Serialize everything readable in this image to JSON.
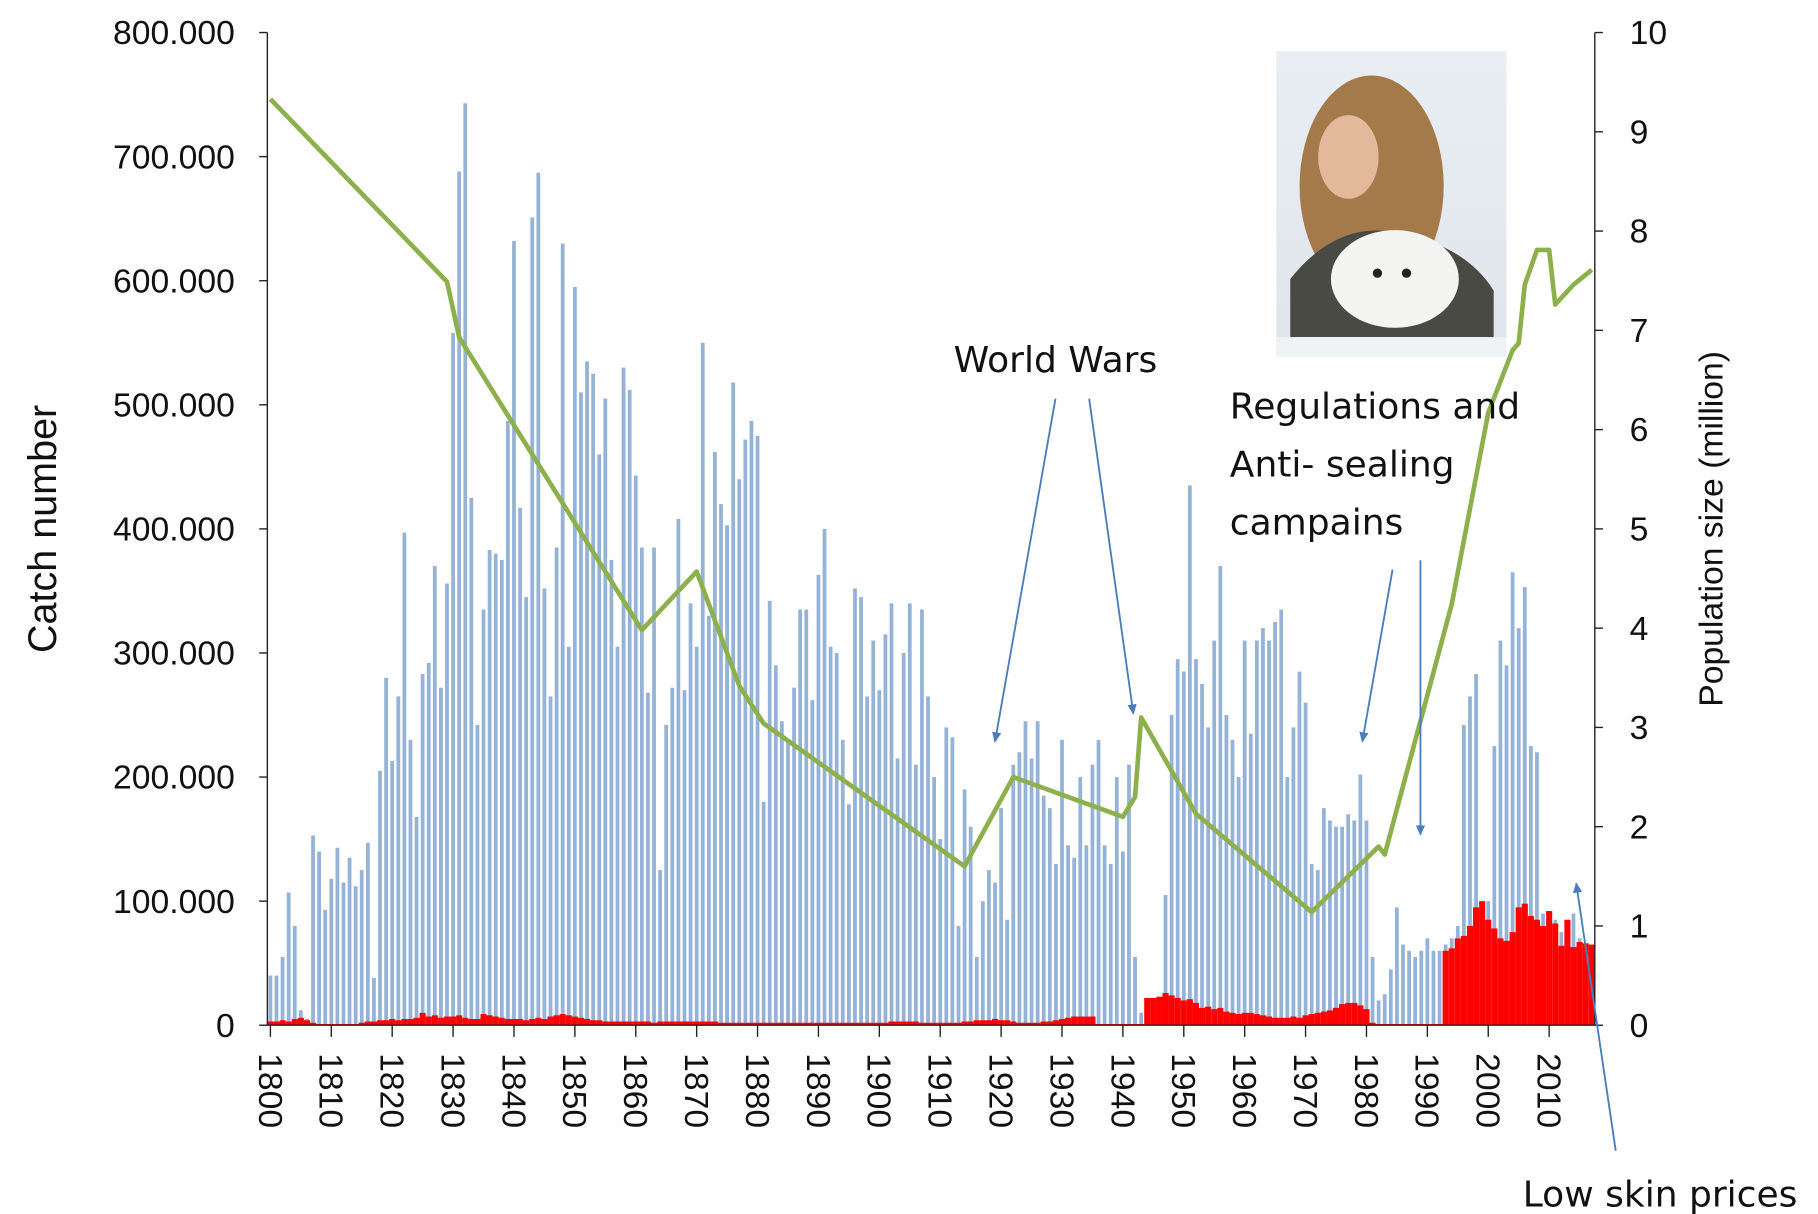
{
  "chart_data": {
    "type": "bar",
    "y_label": "Catch number",
    "y2_label": "Population size (million)",
    "x": [
      1800,
      1801,
      1802,
      1803,
      1804,
      1805,
      1806,
      1807,
      1808,
      1809,
      1810,
      1811,
      1812,
      1813,
      1814,
      1815,
      1816,
      1817,
      1818,
      1819,
      1820,
      1821,
      1822,
      1823,
      1824,
      1825,
      1826,
      1827,
      1828,
      1829,
      1830,
      1831,
      1832,
      1833,
      1834,
      1835,
      1836,
      1837,
      1838,
      1839,
      1840,
      1841,
      1842,
      1843,
      1844,
      1845,
      1846,
      1847,
      1848,
      1849,
      1850,
      1851,
      1852,
      1853,
      1854,
      1855,
      1856,
      1857,
      1858,
      1859,
      1860,
      1861,
      1862,
      1863,
      1864,
      1865,
      1866,
      1867,
      1868,
      1869,
      1870,
      1871,
      1872,
      1873,
      1874,
      1875,
      1876,
      1877,
      1878,
      1879,
      1880,
      1881,
      1882,
      1883,
      1884,
      1885,
      1886,
      1887,
      1888,
      1889,
      1890,
      1891,
      1892,
      1893,
      1894,
      1895,
      1896,
      1897,
      1898,
      1899,
      1900,
      1901,
      1902,
      1903,
      1904,
      1905,
      1906,
      1907,
      1908,
      1909,
      1910,
      1911,
      1912,
      1913,
      1914,
      1915,
      1916,
      1917,
      1918,
      1919,
      1920,
      1921,
      1922,
      1923,
      1924,
      1925,
      1926,
      1927,
      1928,
      1929,
      1930,
      1931,
      1932,
      1933,
      1934,
      1935,
      1936,
      1937,
      1938,
      1939,
      1940,
      1941,
      1942,
      1943,
      1944,
      1945,
      1946,
      1947,
      1948,
      1949,
      1950,
      1951,
      1952,
      1953,
      1954,
      1955,
      1956,
      1957,
      1958,
      1959,
      1960,
      1961,
      1962,
      1963,
      1964,
      1965,
      1966,
      1967,
      1968,
      1969,
      1970,
      1971,
      1972,
      1973,
      1974,
      1975,
      1976,
      1977,
      1978,
      1979,
      1980,
      1981,
      1982,
      1983,
      1984,
      1985,
      1986,
      1987,
      1988,
      1989,
      1990,
      1991,
      1992,
      1993,
      1994,
      1995,
      1996,
      1997,
      1998,
      1999,
      2000,
      2001,
      2002,
      2003,
      2004,
      2005,
      2006,
      2007,
      2008,
      2009,
      2010,
      2011,
      2012,
      2013,
      2014,
      2015,
      2016,
      2017
    ],
    "series": [
      {
        "color": "#95b3d7",
        "values": [
          40000,
          40000,
          55000,
          107000,
          80000,
          12000,
          5000,
          153000,
          140000,
          93000,
          118000,
          143000,
          115000,
          135000,
          112000,
          125000,
          147000,
          38000,
          205000,
          280000,
          213000,
          265000,
          397000,
          230000,
          168000,
          283000,
          292000,
          370000,
          272000,
          356000,
          558000,
          688000,
          743000,
          425000,
          242000,
          335000,
          383000,
          380000,
          375000,
          487000,
          632000,
          417000,
          345000,
          651000,
          687000,
          352000,
          265000,
          385000,
          630000,
          305000,
          595000,
          510000,
          535000,
          525000,
          460000,
          505000,
          375000,
          305000,
          530000,
          512000,
          443000,
          385000,
          268000,
          385000,
          125000,
          242000,
          272000,
          408000,
          270000,
          340000,
          305000,
          550000,
          330000,
          462000,
          420000,
          403000,
          518000,
          440000,
          472000,
          487000,
          475000,
          180000,
          342000,
          290000,
          245000,
          230000,
          272000,
          335000,
          335000,
          262000,
          363000,
          400000,
          305000,
          300000,
          230000,
          178000,
          352000,
          345000,
          265000,
          310000,
          270000,
          315000,
          340000,
          215000,
          300000,
          340000,
          210000,
          335000,
          265000,
          200000,
          150000,
          240000,
          232000,
          80000,
          190000,
          160000,
          55000,
          100000,
          125000,
          115000,
          175000,
          85000,
          210000,
          220000,
          245000,
          215000,
          245000,
          185000,
          175000,
          130000,
          230000,
          145000,
          135000,
          200000,
          145000,
          210000,
          230000,
          145000,
          130000,
          200000,
          140000,
          210000,
          55000,
          10000,
          5000,
          5000,
          10000,
          105000,
          250000,
          295000,
          285000,
          435000,
          295000,
          275000,
          240000,
          310000,
          370000,
          250000,
          230000,
          200000,
          310000,
          235000,
          310000,
          320000,
          310000,
          325000,
          335000,
          200000,
          240000,
          285000,
          260000,
          130000,
          125000,
          175000,
          165000,
          160000,
          160000,
          170000,
          165000,
          202000,
          165000,
          55000,
          20000,
          25000,
          45000,
          95000,
          65000,
          60000,
          55000,
          60000,
          70000,
          60000,
          60000,
          65000,
          70000,
          80000,
          242000,
          265000,
          283000,
          90000,
          100000,
          225000,
          310000,
          290000,
          365000,
          320000,
          353000,
          225000,
          220000,
          90000,
          80000,
          85000,
          75000,
          70000,
          90000,
          70000,
          65000,
          65000
        ]
      },
      {
        "color": "#ff0000",
        "values": [
          3000,
          3000,
          4000,
          3000,
          5000,
          6000,
          4000,
          2000,
          1000,
          1000,
          1000,
          1000,
          1000,
          1000,
          1000,
          2000,
          3000,
          3000,
          4000,
          4000,
          5000,
          4000,
          5000,
          5000,
          6000,
          10000,
          7000,
          8000,
          6000,
          7000,
          7000,
          8000,
          6000,
          5000,
          5000,
          9000,
          8000,
          7000,
          6000,
          5000,
          5000,
          5000,
          4000,
          5000,
          6000,
          5000,
          7000,
          8000,
          9000,
          8000,
          7000,
          6000,
          5000,
          4000,
          4000,
          3000,
          3000,
          3000,
          3000,
          3000,
          3000,
          3000,
          3000,
          2000,
          3000,
          3000,
          3000,
          3000,
          3000,
          3000,
          3000,
          3000,
          3000,
          3000,
          2000,
          2000,
          2000,
          2000,
          2000,
          2000,
          2000,
          2000,
          2000,
          2000,
          2000,
          2000,
          2000,
          2000,
          2000,
          2000,
          2000,
          2000,
          2000,
          2000,
          2000,
          2000,
          2000,
          2000,
          2000,
          2000,
          2000,
          2000,
          3000,
          3000,
          3000,
          3000,
          3000,
          2000,
          2000,
          2000,
          2000,
          2000,
          2000,
          2000,
          3000,
          3000,
          4000,
          4000,
          4000,
          5000,
          4000,
          4000,
          3000,
          2000,
          2000,
          2000,
          2000,
          3000,
          3000,
          4000,
          5000,
          6000,
          7000,
          7000,
          7000,
          7000,
          1000,
          1000,
          1000,
          1000,
          1000,
          1000,
          1000,
          1000,
          22000,
          22000,
          23000,
          26000,
          24000,
          22000,
          20000,
          21000,
          18000,
          14000,
          15000,
          13000,
          14000,
          11000,
          10000,
          9000,
          10000,
          10000,
          9000,
          8000,
          7000,
          6000,
          6000,
          6000,
          7000,
          6000,
          8000,
          9000,
          10000,
          11000,
          12000,
          14000,
          17000,
          18000,
          18000,
          16000,
          13000,
          2000,
          1000,
          1000,
          1000,
          1000,
          1000,
          1000,
          1000,
          1000,
          1000,
          1000,
          1000,
          60000,
          62000,
          70000,
          72000,
          80000,
          95000,
          100000,
          85000,
          78000,
          70000,
          68000,
          75000,
          95000,
          98000,
          88000,
          85000,
          80000,
          92000,
          82000,
          64000,
          85000,
          63000,
          67000,
          66000,
          65000
        ]
      },
      {
        "type": "line",
        "axis": "y2",
        "color": "#8db04c",
        "x": [
          1800,
          1829,
          1831,
          1861,
          1870,
          1877,
          1881,
          1914,
          1922,
          1940,
          1942,
          1943,
          1952,
          1971,
          1982,
          1983,
          1994,
          2000,
          2004,
          2005,
          2006,
          2008,
          2010,
          2011,
          2014,
          2017
        ],
        "values": [
          9.33,
          7.49,
          6.93,
          3.98,
          4.57,
          3.42,
          3.04,
          1.6,
          2.5,
          2.1,
          2.3,
          3.1,
          2.13,
          1.14,
          1.8,
          1.72,
          4.24,
          6.17,
          6.8,
          6.87,
          7.46,
          7.81,
          7.81,
          7.26,
          7.46,
          7.61
        ]
      }
    ],
    "xlim": [
      1799.5,
      2017.5
    ],
    "xticks": [
      1800,
      1810,
      1820,
      1830,
      1840,
      1850,
      1860,
      1870,
      1880,
      1890,
      1900,
      1910,
      1920,
      1930,
      1940,
      1950,
      1960,
      1970,
      1980,
      1990,
      2000,
      2010
    ],
    "ylim": [
      0,
      800000
    ],
    "yticks": [
      0,
      {
        "value": 100000,
        "label": "100.000"
      },
      {
        "value": 200000,
        "label": "200.000"
      },
      {
        "value": 300000,
        "label": "300.000"
      },
      {
        "value": 400000,
        "label": "400.000"
      },
      {
        "value": 500000,
        "label": "500.000"
      },
      {
        "value": 600000,
        "label": "600.000"
      },
      {
        "value": 700000,
        "label": "700.000"
      },
      {
        "value": 800000,
        "label": "800.000"
      }
    ],
    "y2lim": [
      0,
      10
    ],
    "y2ticks": [
      0,
      1,
      2,
      3,
      4,
      5,
      6,
      7,
      8,
      9,
      10
    ],
    "annotations": [
      "World Wars",
      "Regulations and",
      "Anti- sealing",
      "campains",
      "Low skin prices"
    ]
  }
}
